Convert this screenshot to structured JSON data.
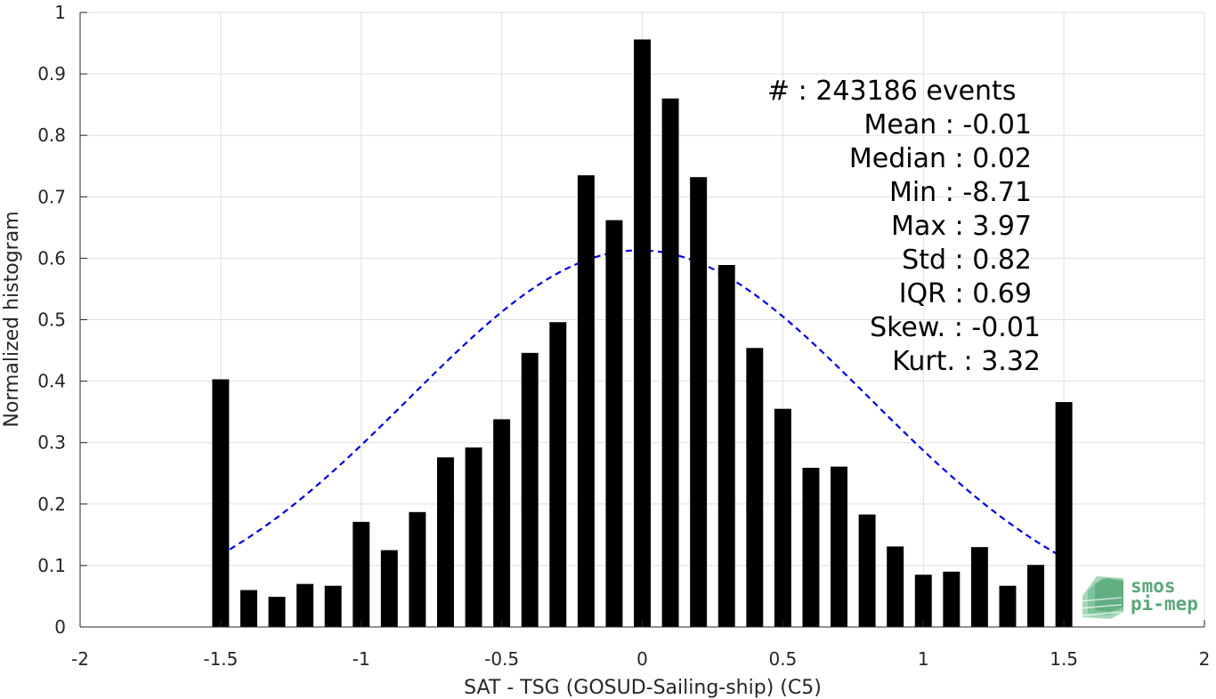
{
  "chart_data": {
    "type": "bar",
    "xlabel": "SAT - TSG (GOSUD-Sailing-ship) (C5)",
    "ylabel": "Normalized histogram",
    "xlim": [
      -2,
      2
    ],
    "ylim": [
      0,
      1
    ],
    "grid": true,
    "x_ticks": [
      "-2",
      "-1.5",
      "-1",
      "-0.5",
      "0",
      "0.5",
      "1",
      "1.5",
      "2"
    ],
    "y_ticks": [
      "0",
      "0.1",
      "0.2",
      "0.3",
      "0.4",
      "0.5",
      "0.6",
      "0.7",
      "0.8",
      "0.9",
      "1"
    ],
    "bar_color": "#000000",
    "bin_width": 0.1,
    "x": [
      -1.5,
      -1.4,
      -1.3,
      -1.2,
      -1.1,
      -1.0,
      -0.9,
      -0.8,
      -0.7,
      -0.6,
      -0.5,
      -0.4,
      -0.3,
      -0.2,
      -0.1,
      0.0,
      0.1,
      0.2,
      0.3,
      0.4,
      0.5,
      0.6,
      0.7,
      0.8,
      0.9,
      1.0,
      1.1,
      1.2,
      1.3,
      1.4,
      1.5
    ],
    "values": [
      0.403,
      0.06,
      0.049,
      0.07,
      0.067,
      0.171,
      0.125,
      0.187,
      0.276,
      0.292,
      0.338,
      0.446,
      0.496,
      0.735,
      0.662,
      0.956,
      0.86,
      0.732,
      0.589,
      0.454,
      0.355,
      0.259,
      0.261,
      0.183,
      0.131,
      0.085,
      0.09,
      0.13,
      0.067,
      0.101,
      0.366
    ],
    "fit": {
      "type": "gaussian",
      "mean": -0.01,
      "std": 0.82,
      "peak": 0.613,
      "x_range": [
        -1.5,
        1.5
      ],
      "color": "#0000e6",
      "style": "dashed"
    },
    "annotations": [
      "#  : 243186 events",
      "Mean : -0.01",
      "Median : 0.02",
      "Min : -8.71",
      "Max : 3.97",
      "Std : 0.82",
      "IQR : 0.69",
      "Skew. : -0.01",
      "Kurt. : 3.32"
    ]
  },
  "logo": {
    "line1": "smos",
    "line2": "pi-mep",
    "color": "#5aa87a"
  }
}
